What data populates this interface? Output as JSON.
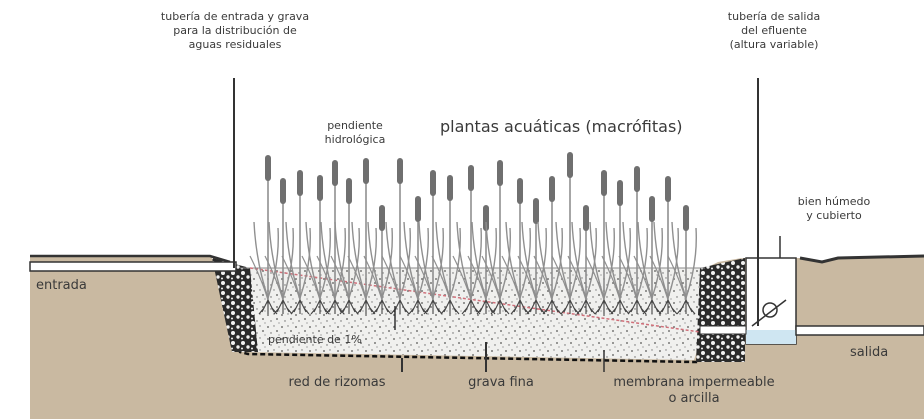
{
  "labels": {
    "inlet_pipe": [
      "tubería de entrada y grava",
      "para la distribución de",
      "aguas residuales"
    ],
    "outlet_pipe": [
      "tubería de salida",
      "del efluente",
      "(altura variable)"
    ],
    "plants": "plantas acuáticas (macrófitas)",
    "hydro_slope": [
      "pendiente",
      "hidrológica"
    ],
    "well": [
      "bien húmedo",
      "y cubierto"
    ],
    "inlet": "entrada",
    "outlet": "salida",
    "slope_1pct": "pendiente de 1%",
    "rhizome_net": "red de rizomas",
    "fine_gravel": "grava fina",
    "membrane": [
      "membrana impermeable",
      "o arcilla"
    ]
  },
  "colors": {
    "soil": "#c9b9a1",
    "gravel_bed": "#f0f0ee",
    "coarse_gravel": "#1e1e1e",
    "plant": "#8f8f8f",
    "plant_dark": "#6f6f6f",
    "slope_line": "#d0707a",
    "water": "#cfe6f2",
    "text": "#3a3a3a"
  }
}
